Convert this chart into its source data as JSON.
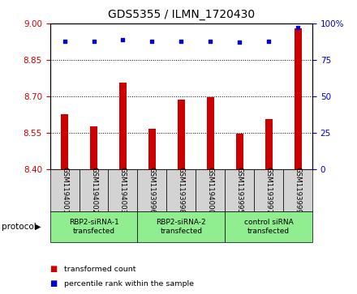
{
  "title": "GDS5355 / ILMN_1720430",
  "samples": [
    "GSM1194001",
    "GSM1194002",
    "GSM1194003",
    "GSM1193996",
    "GSM1193998",
    "GSM1194000",
    "GSM1193995",
    "GSM1193997",
    "GSM1193999"
  ],
  "bar_values": [
    8.625,
    8.575,
    8.755,
    8.565,
    8.685,
    8.695,
    8.545,
    8.605,
    8.98
  ],
  "dot_values": [
    88,
    88,
    89,
    88,
    88,
    88,
    87,
    88,
    97
  ],
  "ylim_left": [
    8.4,
    9.0
  ],
  "ylim_right": [
    0,
    100
  ],
  "yticks_left": [
    8.4,
    8.55,
    8.7,
    8.85,
    9.0
  ],
  "yticks_right": [
    0,
    25,
    50,
    75,
    100
  ],
  "bar_color": "#cc0000",
  "dot_color": "#0000cc",
  "bg_sample": "#d3d3d3",
  "bg_protocol": "#90ee90",
  "protocol_groups": [
    {
      "label": "RBP2-siRNA-1\ntransfected",
      "start": 0,
      "end": 3
    },
    {
      "label": "RBP2-siRNA-2\ntransfected",
      "start": 3,
      "end": 6
    },
    {
      "label": "control siRNA\ntransfected",
      "start": 6,
      "end": 9
    }
  ],
  "legend_bar_label": "transformed count",
  "legend_dot_label": "percentile rank within the sample",
  "protocol_label": "protocol",
  "title_fontsize": 10,
  "tick_fontsize": 7.5,
  "label_fontsize": 7
}
